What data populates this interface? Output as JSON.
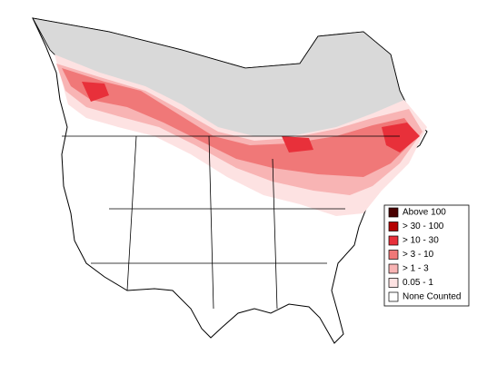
{
  "legend": {
    "items": [
      {
        "label": "Above 100",
        "color": "#4a0000"
      },
      {
        "label": "> 30 - 100",
        "color": "#b40000"
      },
      {
        "label": "> 10 - 30",
        "color": "#e8303a"
      },
      {
        "label": "> 3 - 10",
        "color": "#f07878"
      },
      {
        "label": "> 1 - 3",
        "color": "#f8b4b4"
      },
      {
        "label": "0.05 - 1",
        "color": "#fde2e2"
      },
      {
        "label": "None Counted",
        "color": "#ffffff"
      }
    ]
  }
}
